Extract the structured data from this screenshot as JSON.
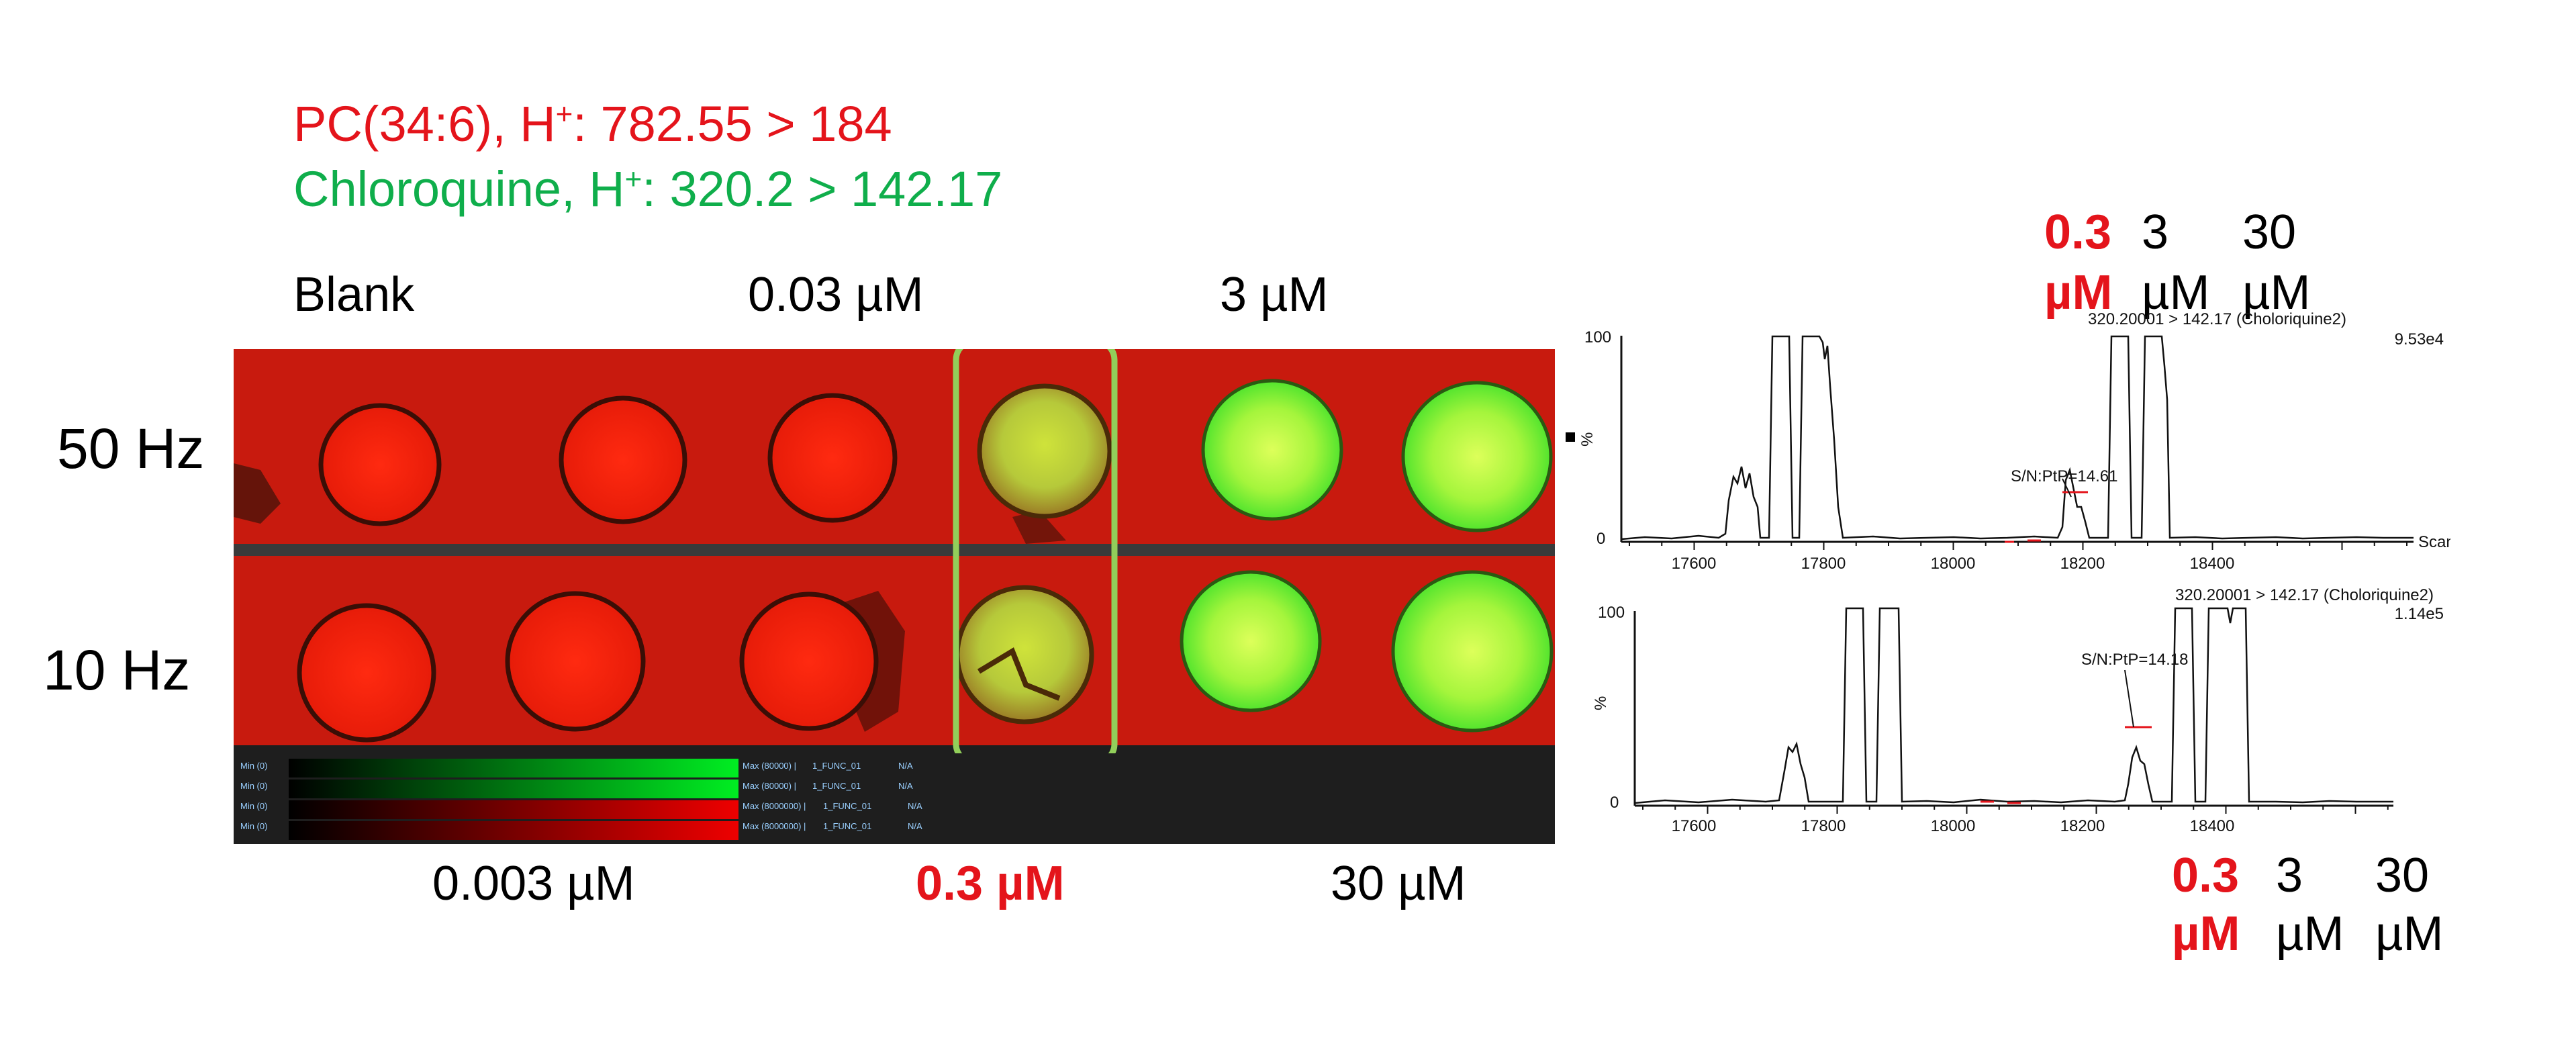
{
  "title": {
    "line1_prefix": "PC(34:6), H",
    "line1_sup": "+",
    "line1_suffix": ": 782.55 > 184",
    "line2_prefix": "Chloroquine, H",
    "line2_sup": "+",
    "line2_suffix": ": 320.2 > 142.17"
  },
  "top_labels": [
    "Blank",
    "0.03 µM",
    "3 µM"
  ],
  "bottom_labels": [
    "0.003 µM",
    "0.3 µM",
    "30 µM"
  ],
  "row_labels": [
    "50 Hz",
    "10 Hz"
  ],
  "legend": {
    "rows": [
      {
        "min": "Min (0)",
        "max": "Max (80000) |",
        "func": "1_FUNC_01",
        "na": "N/A",
        "color": "#00e01a"
      },
      {
        "min": "Min (0)",
        "max": "Max (80000) |",
        "func": "1_FUNC_01",
        "na": "N/A",
        "color": "#00e01a"
      },
      {
        "min": "Min (0)",
        "max": "Max (8000000) |",
        "func": "1_FUNC_01",
        "na": "N/A",
        "color": "#e40000"
      },
      {
        "min": "Min (0)",
        "max": "Max (8000000) |",
        "func": "1_FUNC_01",
        "na": "N/A",
        "color": "#e40000"
      }
    ]
  },
  "colors": {
    "pc_red": "#e4141b",
    "chloroquine_green": "#0fae4b",
    "highlight_box": "#92cf5a"
  },
  "chromatograms": {
    "top_conc": {
      "c1_num": "0.3",
      "c1_unit": "µM",
      "c2_num": "3",
      "c2_unit": "µM",
      "c3_num": "30",
      "c3_unit": "µM"
    },
    "bottom_conc": {
      "c1_num": "0.3",
      "c1_unit": "µM",
      "c2_num": "3",
      "c2_unit": "µM",
      "c3_num": "30",
      "c3_unit": "µM"
    },
    "top": {
      "header": "320.20001 > 142.17 (Choloriquine2)",
      "intensity": "9.53e4",
      "sn": "S/N:PtP=14.61",
      "y_top": "100",
      "y_zero": "0",
      "y_unit": "%",
      "x_ticks": [
        "17600",
        "17800",
        "18000",
        "18200",
        "18400"
      ],
      "x_unit": "Scan"
    },
    "bottom": {
      "header": "320.20001 > 142.17 (Choloriquine2)",
      "intensity": "1.14e5",
      "sn": "S/N:PtP=14.18",
      "y_top": "100",
      "y_zero": "0",
      "y_unit": "%",
      "x_ticks": [
        "17600",
        "17800",
        "18000",
        "18200",
        "18400"
      ]
    }
  }
}
